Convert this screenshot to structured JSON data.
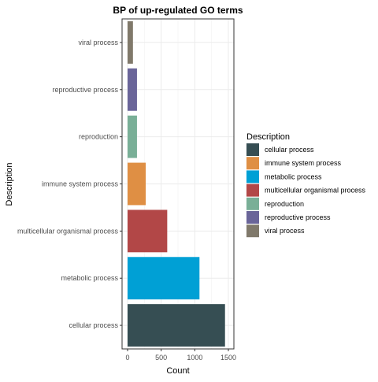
{
  "chart_data": {
    "type": "bar",
    "orientation": "horizontal",
    "title": "BP of up-regulated GO terms",
    "xlabel": "Count",
    "ylabel": "Description",
    "categories": [
      "cellular process",
      "metabolic process",
      "multicellular organismal process",
      "immune system process",
      "reproduction",
      "reproductive process",
      "viral process"
    ],
    "values": [
      1450,
      1070,
      590,
      270,
      140,
      140,
      80
    ],
    "colors": [
      "#364e53",
      "#00a0d5",
      "#b24747",
      "#df8f44",
      "#79af97",
      "#6a6599",
      "#80796b"
    ],
    "xlim": [
      0,
      1500
    ],
    "xticks": [
      0,
      500,
      1000,
      1500
    ],
    "grid": true,
    "legend": {
      "title": "Description",
      "position": "right",
      "entries": [
        {
          "label": "cellular process",
          "color": "#364e53"
        },
        {
          "label": "immune system process",
          "color": "#df8f44"
        },
        {
          "label": "metabolic process",
          "color": "#00a0d5"
        },
        {
          "label": "multicellular organismal process",
          "color": "#b24747"
        },
        {
          "label": "reproduction",
          "color": "#79af97"
        },
        {
          "label": "reproductive process",
          "color": "#6a6599"
        },
        {
          "label": "viral process",
          "color": "#80796b"
        }
      ]
    }
  }
}
